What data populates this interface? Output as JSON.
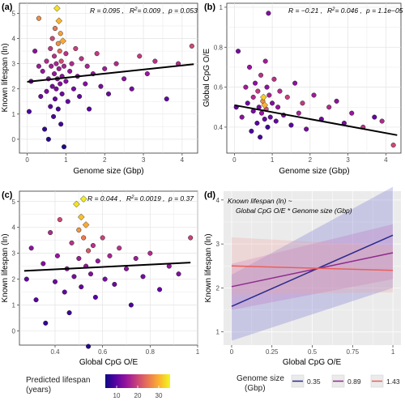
{
  "panels": [
    {
      "tag": "(a)",
      "stats": {
        "r": "R = 0.095 ,",
        "r2v": "= 0.009 ,",
        "pv": "= 0.053"
      }
    },
    {
      "tag": "(b)",
      "stats": {
        "r": "R = −0.21 ,",
        "r2v": "= 0.046 ,",
        "pv": "= 1.1e−05"
      }
    },
    {
      "tag": "(c)",
      "stats": {
        "r": "R = 0.044 ,",
        "r2v": "= 0.0019 ,",
        "pv": "= 0.37"
      }
    },
    {
      "tag": "(d)",
      "annotation": [
        "Known lifespan (ln) ~",
        "Global CpG O/E * Genome size (Gbp)"
      ]
    }
  ],
  "stat_labels": {
    "r2": "R",
    "r2sup": "2",
    "p": "p"
  },
  "legends": {
    "predicted": {
      "title": [
        "Predicted lifespan",
        "(years)"
      ],
      "ticks": [
        "10",
        "20",
        "30"
      ],
      "colors": [
        "#0d0887",
        "#5b02a3",
        "#9a179b",
        "#cb4678",
        "#eb7852",
        "#fbb32f",
        "#f0f921"
      ]
    },
    "genome": {
      "title": [
        "Genome size",
        "(Gbp)"
      ],
      "items": [
        {
          "label": "0.35",
          "color": "#2a2a8c"
        },
        {
          "label": "0.89",
          "color": "#8e2a8e"
        },
        {
          "label": "1.43",
          "color": "#e8605a"
        }
      ]
    }
  },
  "chart_data": [
    {
      "type": "scatter",
      "title": "(a)",
      "xlabel": "Genome size (Gbp)",
      "ylabel": "Known lifespan (ln)",
      "xlim": [
        -0.2,
        4.4
      ],
      "ylim": [
        -0.55,
        5.4
      ],
      "xticks": [
        0,
        1,
        2,
        3,
        4
      ],
      "yticks": [
        0,
        1,
        2,
        3,
        4,
        5
      ],
      "grid": true,
      "trend": {
        "x": [
          0,
          4.3
        ],
        "y": [
          2.28,
          2.98
        ]
      },
      "points": [
        {
          "x": 0.05,
          "y": 1.1,
          "c": 8
        },
        {
          "x": 0.1,
          "y": 2.3,
          "c": 12
        },
        {
          "x": 0.2,
          "y": 3.5,
          "c": 14
        },
        {
          "x": 0.3,
          "y": 4.8,
          "c": 30
        },
        {
          "x": 0.3,
          "y": 2.9,
          "c": 16
        },
        {
          "x": 0.35,
          "y": 1.7,
          "c": 11
        },
        {
          "x": 0.4,
          "y": 2.7,
          "c": 15
        },
        {
          "x": 0.45,
          "y": 0.4,
          "c": 6
        },
        {
          "x": 0.5,
          "y": 3.1,
          "c": 18
        },
        {
          "x": 0.5,
          "y": 1.9,
          "c": 12
        },
        {
          "x": 0.55,
          "y": 2.4,
          "c": 14
        },
        {
          "x": 0.55,
          "y": 0.0,
          "c": 5
        },
        {
          "x": 0.6,
          "y": 3.6,
          "c": 20
        },
        {
          "x": 0.6,
          "y": 1.3,
          "c": 9
        },
        {
          "x": 0.62,
          "y": 2.9,
          "c": 16
        },
        {
          "x": 0.65,
          "y": 4.0,
          "c": 22
        },
        {
          "x": 0.65,
          "y": 2.1,
          "c": 12
        },
        {
          "x": 0.68,
          "y": 0.9,
          "c": 8
        },
        {
          "x": 0.7,
          "y": 3.3,
          "c": 19
        },
        {
          "x": 0.7,
          "y": 2.6,
          "c": 15
        },
        {
          "x": 0.72,
          "y": 1.6,
          "c": 10
        },
        {
          "x": 0.72,
          "y": 4.4,
          "c": 28
        },
        {
          "x": 0.75,
          "y": 2.0,
          "c": 12
        },
        {
          "x": 0.75,
          "y": 3.0,
          "c": 17
        },
        {
          "x": 0.77,
          "y": 5.2,
          "c": 38
        },
        {
          "x": 0.78,
          "y": 2.4,
          "c": 14
        },
        {
          "x": 0.8,
          "y": 3.8,
          "c": 30
        },
        {
          "x": 0.8,
          "y": 1.2,
          "c": 8
        },
        {
          "x": 0.82,
          "y": 4.7,
          "c": 34
        },
        {
          "x": 0.82,
          "y": 2.8,
          "c": 16
        },
        {
          "x": 0.84,
          "y": 3.5,
          "c": 26
        },
        {
          "x": 0.85,
          "y": 2.2,
          "c": 13
        },
        {
          "x": 0.86,
          "y": 4.2,
          "c": 32
        },
        {
          "x": 0.87,
          "y": 0.6,
          "c": 7
        },
        {
          "x": 0.88,
          "y": 3.1,
          "c": 22
        },
        {
          "x": 0.9,
          "y": 2.5,
          "c": 14
        },
        {
          "x": 0.9,
          "y": 1.8,
          "c": 11
        },
        {
          "x": 0.92,
          "y": 3.9,
          "c": 33
        },
        {
          "x": 0.95,
          "y": 2.9,
          "c": 17
        },
        {
          "x": 0.95,
          "y": -0.3,
          "c": 5
        },
        {
          "x": 1.0,
          "y": 2.3,
          "c": 13
        },
        {
          "x": 1.0,
          "y": 3.4,
          "c": 19
        },
        {
          "x": 1.05,
          "y": 1.5,
          "c": 10
        },
        {
          "x": 1.1,
          "y": 2.7,
          "c": 15
        },
        {
          "x": 1.15,
          "y": 3.0,
          "c": 18
        },
        {
          "x": 1.2,
          "y": 2.0,
          "c": 12
        },
        {
          "x": 1.25,
          "y": 3.6,
          "c": 21
        },
        {
          "x": 1.3,
          "y": 2.5,
          "c": 14
        },
        {
          "x": 1.35,
          "y": 1.7,
          "c": 10
        },
        {
          "x": 1.4,
          "y": 3.2,
          "c": 19
        },
        {
          "x": 1.5,
          "y": 2.2,
          "c": 13
        },
        {
          "x": 1.55,
          "y": 2.9,
          "c": 17
        },
        {
          "x": 1.6,
          "y": 1.2,
          "c": 9
        },
        {
          "x": 1.7,
          "y": 2.6,
          "c": 15
        },
        {
          "x": 1.8,
          "y": 3.4,
          "c": 20
        },
        {
          "x": 1.9,
          "y": 2.1,
          "c": 12
        },
        {
          "x": 2.0,
          "y": 2.8,
          "c": 16
        },
        {
          "x": 2.1,
          "y": 1.8,
          "c": 11
        },
        {
          "x": 2.3,
          "y": 3.0,
          "c": 18
        },
        {
          "x": 2.5,
          "y": 2.4,
          "c": 14
        },
        {
          "x": 2.7,
          "y": 2.0,
          "c": 12
        },
        {
          "x": 2.9,
          "y": 3.3,
          "c": 20
        },
        {
          "x": 3.1,
          "y": 2.6,
          "c": 15
        },
        {
          "x": 3.3,
          "y": 3.1,
          "c": 19
        },
        {
          "x": 3.6,
          "y": 1.6,
          "c": 10
        },
        {
          "x": 3.9,
          "y": 3.0,
          "c": 18
        },
        {
          "x": 4.25,
          "y": 3.7,
          "c": 22
        }
      ]
    },
    {
      "type": "scatter",
      "title": "(b)",
      "xlabel": "Genome size (Gbp)",
      "ylabel": "Global CpG O/E",
      "xlim": [
        -0.2,
        4.4
      ],
      "ylim": [
        0.27,
        1.02
      ],
      "xticks": [
        0,
        1,
        2,
        3,
        4
      ],
      "yticks": [
        0.4,
        0.6,
        0.8,
        1.0
      ],
      "grid": true,
      "trend": {
        "x": [
          0,
          4.3
        ],
        "y": [
          0.51,
          0.36
        ]
      },
      "points": [
        {
          "x": 0.05,
          "y": 0.5,
          "c": 10
        },
        {
          "x": 0.1,
          "y": 0.78,
          "c": 12
        },
        {
          "x": 0.2,
          "y": 0.45,
          "c": 14
        },
        {
          "x": 0.3,
          "y": 0.6,
          "c": 16
        },
        {
          "x": 0.35,
          "y": 0.52,
          "c": 11
        },
        {
          "x": 0.4,
          "y": 0.7,
          "c": 15
        },
        {
          "x": 0.45,
          "y": 0.38,
          "c": 8
        },
        {
          "x": 0.5,
          "y": 0.55,
          "c": 18
        },
        {
          "x": 0.5,
          "y": 0.48,
          "c": 12
        },
        {
          "x": 0.55,
          "y": 0.62,
          "c": 14
        },
        {
          "x": 0.6,
          "y": 0.42,
          "c": 9
        },
        {
          "x": 0.62,
          "y": 0.58,
          "c": 20
        },
        {
          "x": 0.65,
          "y": 0.5,
          "c": 12
        },
        {
          "x": 0.68,
          "y": 0.35,
          "c": 8
        },
        {
          "x": 0.7,
          "y": 0.66,
          "c": 19
        },
        {
          "x": 0.72,
          "y": 0.47,
          "c": 15
        },
        {
          "x": 0.75,
          "y": 0.53,
          "c": 30
        },
        {
          "x": 0.77,
          "y": 0.55,
          "c": 36
        },
        {
          "x": 0.8,
          "y": 0.51,
          "c": 34
        },
        {
          "x": 0.8,
          "y": 0.44,
          "c": 10
        },
        {
          "x": 0.82,
          "y": 0.73,
          "c": 16
        },
        {
          "x": 0.84,
          "y": 0.49,
          "c": 22
        },
        {
          "x": 0.86,
          "y": 0.6,
          "c": 14
        },
        {
          "x": 0.88,
          "y": 0.4,
          "c": 7
        },
        {
          "x": 0.9,
          "y": 0.97,
          "c": 13
        },
        {
          "x": 0.92,
          "y": 0.56,
          "c": 17
        },
        {
          "x": 0.95,
          "y": 0.45,
          "c": 11
        },
        {
          "x": 1.0,
          "y": 0.52,
          "c": 13
        },
        {
          "x": 1.05,
          "y": 0.64,
          "c": 19
        },
        {
          "x": 1.1,
          "y": 0.43,
          "c": 10
        },
        {
          "x": 1.15,
          "y": 0.5,
          "c": 15
        },
        {
          "x": 1.2,
          "y": 0.58,
          "c": 18
        },
        {
          "x": 1.3,
          "y": 0.46,
          "c": 12
        },
        {
          "x": 1.4,
          "y": 0.55,
          "c": 21
        },
        {
          "x": 1.5,
          "y": 0.41,
          "c": 9
        },
        {
          "x": 1.6,
          "y": 0.62,
          "c": 14
        },
        {
          "x": 1.7,
          "y": 0.47,
          "c": 17
        },
        {
          "x": 1.8,
          "y": 0.52,
          "c": 20
        },
        {
          "x": 1.9,
          "y": 0.39,
          "c": 12
        },
        {
          "x": 2.1,
          "y": 0.56,
          "c": 16
        },
        {
          "x": 2.3,
          "y": 0.44,
          "c": 11
        },
        {
          "x": 2.5,
          "y": 0.5,
          "c": 18
        },
        {
          "x": 2.7,
          "y": 0.53,
          "c": 14
        },
        {
          "x": 2.9,
          "y": 0.42,
          "c": 12
        },
        {
          "x": 3.1,
          "y": 0.47,
          "c": 15
        },
        {
          "x": 3.4,
          "y": 0.4,
          "c": 19
        },
        {
          "x": 3.7,
          "y": 0.45,
          "c": 10
        },
        {
          "x": 3.9,
          "y": 0.43,
          "c": 18
        },
        {
          "x": 4.2,
          "y": 0.31,
          "c": 22
        }
      ]
    },
    {
      "type": "scatter",
      "title": "(c)",
      "xlabel": "Global CpG O/E",
      "ylabel": "Known lifespan (ln)",
      "xlim": [
        0.25,
        1.0
      ],
      "ylim": [
        -0.55,
        5.4
      ],
      "xticks": [
        0.4,
        0.6,
        0.8,
        1.0
      ],
      "yticks": [
        0,
        1,
        2,
        3,
        4,
        5
      ],
      "grid": true,
      "trend": {
        "x": [
          0.27,
          0.97
        ],
        "y": [
          2.32,
          2.64
        ]
      },
      "points": [
        {
          "x": 0.28,
          "y": 2.0,
          "c": 10
        },
        {
          "x": 0.3,
          "y": 3.2,
          "c": 14
        },
        {
          "x": 0.32,
          "y": 1.2,
          "c": 9
        },
        {
          "x": 0.35,
          "y": 2.6,
          "c": 13
        },
        {
          "x": 0.36,
          "y": 0.3,
          "c": 6
        },
        {
          "x": 0.38,
          "y": 3.8,
          "c": 18
        },
        {
          "x": 0.4,
          "y": 1.9,
          "c": 11
        },
        {
          "x": 0.41,
          "y": 2.9,
          "c": 15
        },
        {
          "x": 0.42,
          "y": 4.3,
          "c": 22
        },
        {
          "x": 0.44,
          "y": 1.5,
          "c": 10
        },
        {
          "x": 0.45,
          "y": 2.4,
          "c": 14
        },
        {
          "x": 0.46,
          "y": 0.7,
          "c": 7
        },
        {
          "x": 0.47,
          "y": 3.4,
          "c": 19
        },
        {
          "x": 0.48,
          "y": 2.1,
          "c": 12
        },
        {
          "x": 0.49,
          "y": 4.9,
          "c": 38
        },
        {
          "x": 0.5,
          "y": 3.9,
          "c": 31
        },
        {
          "x": 0.5,
          "y": 2.8,
          "c": 16
        },
        {
          "x": 0.51,
          "y": 4.4,
          "c": 35
        },
        {
          "x": 0.51,
          "y": 1.7,
          "c": 10
        },
        {
          "x": 0.52,
          "y": 3.6,
          "c": 28
        },
        {
          "x": 0.52,
          "y": 5.1,
          "c": 39
        },
        {
          "x": 0.53,
          "y": 2.5,
          "c": 15
        },
        {
          "x": 0.53,
          "y": 4.1,
          "c": 33
        },
        {
          "x": 0.54,
          "y": 3.1,
          "c": 24
        },
        {
          "x": 0.54,
          "y": -0.6,
          "c": 5
        },
        {
          "x": 0.55,
          "y": 2.2,
          "c": 13
        },
        {
          "x": 0.56,
          "y": 3.3,
          "c": 19
        },
        {
          "x": 0.57,
          "y": 1.3,
          "c": 9
        },
        {
          "x": 0.58,
          "y": 2.7,
          "c": 15
        },
        {
          "x": 0.6,
          "y": 3.6,
          "c": 21
        },
        {
          "x": 0.61,
          "y": 2.0,
          "c": 12
        },
        {
          "x": 0.63,
          "y": 2.9,
          "c": 17
        },
        {
          "x": 0.65,
          "y": 1.8,
          "c": 11
        },
        {
          "x": 0.67,
          "y": 3.2,
          "c": 19
        },
        {
          "x": 0.7,
          "y": 2.4,
          "c": 14
        },
        {
          "x": 0.72,
          "y": 1.0,
          "c": 8
        },
        {
          "x": 0.74,
          "y": 2.8,
          "c": 16
        },
        {
          "x": 0.77,
          "y": 2.1,
          "c": 12
        },
        {
          "x": 0.8,
          "y": 3.0,
          "c": 18
        },
        {
          "x": 0.84,
          "y": 1.6,
          "c": 10
        },
        {
          "x": 0.88,
          "y": 2.5,
          "c": 15
        },
        {
          "x": 0.92,
          "y": 2.2,
          "c": 13
        },
        {
          "x": 0.97,
          "y": 3.6,
          "c": 21
        }
      ]
    },
    {
      "type": "line",
      "title": "(d)",
      "xlabel": "Global CpG O/E",
      "ylabel": "Known lifespan (ln)",
      "xlim": [
        -0.05,
        1.05
      ],
      "ylim": [
        0.7,
        4.2
      ],
      "xticks": [
        0.0,
        0.25,
        0.5,
        0.75,
        1.0
      ],
      "yticks": [
        1,
        2,
        3,
        4
      ],
      "grid": true,
      "series": [
        {
          "name": "0.35",
          "x": [
            0,
            1
          ],
          "y": [
            1.58,
            3.2
          ],
          "lo": [
            0.8,
            2.0
          ],
          "hi": [
            2.3,
            4.3
          ]
        },
        {
          "name": "0.89",
          "x": [
            0,
            1
          ],
          "y": [
            2.03,
            2.8
          ],
          "lo": [
            1.5,
            2.2
          ],
          "hi": [
            2.55,
            3.45
          ]
        },
        {
          "name": "1.43",
          "x": [
            0,
            1
          ],
          "y": [
            2.5,
            2.4
          ],
          "lo": [
            1.85,
            1.9
          ],
          "hi": [
            3.15,
            2.95
          ]
        }
      ]
    }
  ]
}
